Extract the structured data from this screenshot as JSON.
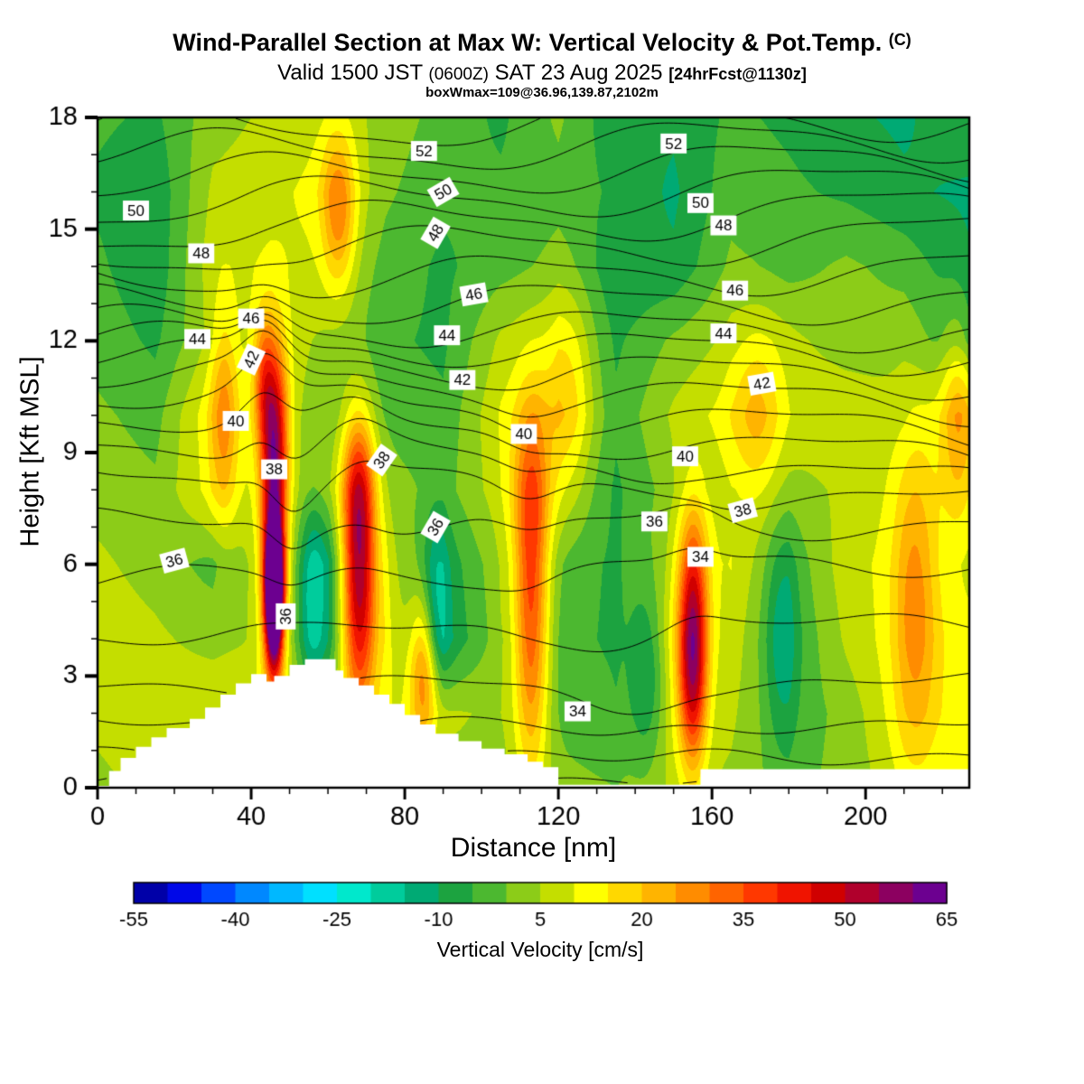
{
  "header": {
    "title_main": "Wind-Parallel Section at Max W: Vertical Velocity & Pot.Temp.",
    "title_unit": "(C)",
    "valid_prefix": "Valid 1500 JST ",
    "valid_zulu": "(0600Z)",
    "valid_date": " SAT 23 Aug 2025 ",
    "valid_fcst": "[24hrFcst@1130z]",
    "info_line": "boxWmax=109@36.96,139.87,2102m"
  },
  "chart_data": {
    "type": "heatmap",
    "title": "Wind-Parallel Section at Max W: Vertical Velocity & Pot.Temp. (C)",
    "xlabel": "Distance [nm]",
    "ylabel": "Height [Kft MSL]",
    "xlim": [
      0,
      227
    ],
    "ylim": [
      0,
      18
    ],
    "x_major_ticks": [
      0,
      40,
      80,
      120,
      160,
      200
    ],
    "x_minor_step": 10,
    "y_major_ticks": [
      0,
      3,
      6,
      9,
      12,
      15,
      18
    ],
    "y_minor_step": 1,
    "colorbar": {
      "label": "Vertical Velocity [cm/s]",
      "tick_labels": [
        -55,
        -40,
        -25,
        -10,
        5,
        20,
        35,
        50,
        65
      ],
      "levels": [
        -55,
        -50,
        -45,
        -40,
        -35,
        -30,
        -25,
        -20,
        -15,
        -10,
        -5,
        0,
        5,
        10,
        15,
        20,
        25,
        30,
        35,
        40,
        45,
        50,
        55,
        60,
        65
      ],
      "colors": [
        "#0000a8",
        "#0008e8",
        "#0048ff",
        "#0088ff",
        "#00b8ff",
        "#00e0ff",
        "#00e8cc",
        "#00cc9c",
        "#00aa74",
        "#1ca340",
        "#4cb830",
        "#8ccc18",
        "#c4de00",
        "#ffff00",
        "#ffd800",
        "#ffb400",
        "#ff8c00",
        "#ff6400",
        "#ff3800",
        "#f01400",
        "#d00000",
        "#b0002c",
        "#8c0060",
        "#6c0090"
      ]
    },
    "w_field": {
      "comment": "vertical velocity cm/s, coarse background grid, rows from z=0 (bottom) to z=18 kft",
      "x": [
        0,
        15,
        30,
        45,
        60,
        75,
        90,
        105,
        120,
        135,
        150,
        165,
        180,
        195,
        210,
        225
      ],
      "z": [
        0,
        2,
        4,
        6,
        8,
        10,
        12,
        14,
        16,
        18
      ],
      "values": [
        [
          4,
          6,
          8,
          8,
          6,
          6,
          4,
          3,
          2,
          0,
          6,
          4,
          -2,
          2,
          8,
          10
        ],
        [
          6,
          8,
          10,
          10,
          3,
          10,
          6,
          4,
          -2,
          -4,
          8,
          6,
          -4,
          2,
          12,
          13
        ],
        [
          8,
          6,
          3,
          6,
          -9,
          11,
          -11,
          3,
          -3,
          -6,
          10,
          8,
          -6,
          6,
          13,
          12
        ],
        [
          6,
          3,
          -2,
          8,
          -11,
          8,
          -9,
          4,
          -2,
          -6,
          6,
          10,
          -4,
          8,
          12,
          8
        ],
        [
          3,
          1,
          12,
          6,
          3,
          3,
          -2,
          8,
          6,
          -6,
          3,
          8,
          3,
          6,
          10,
          10
        ],
        [
          1,
          -2,
          14,
          8,
          1,
          -2,
          -4,
          10,
          12,
          -4,
          6,
          12,
          8,
          8,
          6,
          12
        ],
        [
          -2,
          -6,
          6,
          10,
          3,
          -4,
          -6,
          6,
          8,
          -6,
          1,
          6,
          6,
          3,
          3,
          -6
        ],
        [
          -4,
          -9,
          8,
          10,
          8,
          -2,
          -6,
          -2,
          1,
          -9,
          -9,
          1,
          -2,
          1,
          -2,
          -9
        ],
        [
          -6,
          -9,
          6,
          8,
          13,
          1,
          -4,
          -4,
          -2,
          -6,
          -11,
          -2,
          -4,
          -6,
          -9,
          -11
        ],
        [
          -4,
          -6,
          3,
          6,
          8,
          3,
          -2,
          -6,
          1,
          -9,
          -9,
          -4,
          -6,
          -9,
          -11,
          -6
        ]
      ]
    },
    "w_anomalies": [
      [
        46,
        5.2,
        1.6,
        1.3,
        80
      ],
      [
        46,
        6.8,
        2.4,
        2.6,
        40
      ],
      [
        46,
        9.8,
        2.6,
        1.6,
        28
      ],
      [
        68,
        5.5,
        3.2,
        2.4,
        50
      ],
      [
        68,
        8.2,
        3.0,
        1.4,
        20
      ],
      [
        85,
        3.2,
        2.6,
        1.4,
        26
      ],
      [
        113,
        4.5,
        3.2,
        3.0,
        32
      ],
      [
        113,
        8.0,
        3.6,
        1.8,
        15
      ],
      [
        155,
        3.2,
        2.6,
        1.8,
        45
      ],
      [
        155,
        5.8,
        2.8,
        1.6,
        20
      ],
      [
        33,
        10.0,
        2.4,
        1.9,
        16
      ],
      [
        43,
        11.0,
        1.8,
        1.2,
        16
      ],
      [
        63,
        15.5,
        3.0,
        1.5,
        20
      ],
      [
        213,
        5.0,
        4.0,
        3.0,
        16
      ],
      [
        224,
        10.0,
        3.0,
        2.0,
        14
      ],
      [
        172,
        10.0,
        4.5,
        1.6,
        12
      ],
      [
        123,
        10.5,
        4.0,
        2.0,
        10
      ],
      [
        56,
        5.0,
        2.4,
        1.9,
        -14
      ],
      [
        88,
        4.8,
        2.4,
        1.7,
        -12
      ],
      [
        178,
        4.0,
        3.0,
        2.0,
        -10
      ],
      [
        143,
        3.0,
        3.0,
        1.6,
        -12
      ]
    ],
    "terrain_steps": [
      [
        0,
        0.05
      ],
      [
        3,
        0.05
      ],
      [
        3,
        0.45
      ],
      [
        6,
        0.45
      ],
      [
        6,
        0.8
      ],
      [
        10,
        0.8
      ],
      [
        10,
        1.1
      ],
      [
        14,
        1.1
      ],
      [
        14,
        1.35
      ],
      [
        18,
        1.35
      ],
      [
        18,
        1.6
      ],
      [
        24,
        1.6
      ],
      [
        24,
        1.85
      ],
      [
        28,
        1.85
      ],
      [
        28,
        2.15
      ],
      [
        32,
        2.15
      ],
      [
        32,
        2.5
      ],
      [
        36,
        2.5
      ],
      [
        36,
        2.8
      ],
      [
        40,
        2.8
      ],
      [
        40,
        3.05
      ],
      [
        44,
        3.05
      ],
      [
        44,
        2.85
      ],
      [
        46,
        2.85
      ],
      [
        46,
        3.0
      ],
      [
        50,
        3.0
      ],
      [
        50,
        3.3
      ],
      [
        54,
        3.3
      ],
      [
        54,
        3.45
      ],
      [
        62,
        3.45
      ],
      [
        62,
        3.15
      ],
      [
        64,
        3.15
      ],
      [
        64,
        2.95
      ],
      [
        68,
        2.95
      ],
      [
        68,
        2.75
      ],
      [
        72,
        2.75
      ],
      [
        72,
        2.5
      ],
      [
        76,
        2.5
      ],
      [
        76,
        2.25
      ],
      [
        80,
        2.25
      ],
      [
        80,
        1.95
      ],
      [
        84,
        1.95
      ],
      [
        84,
        1.7
      ],
      [
        88,
        1.7
      ],
      [
        88,
        1.45
      ],
      [
        94,
        1.45
      ],
      [
        94,
        1.25
      ],
      [
        100,
        1.25
      ],
      [
        100,
        1.05
      ],
      [
        106,
        1.05
      ],
      [
        106,
        0.9
      ],
      [
        112,
        0.9
      ],
      [
        112,
        0.7
      ],
      [
        116,
        0.7
      ],
      [
        116,
        0.55
      ],
      [
        120,
        0.55
      ],
      [
        120,
        0.08
      ],
      [
        157,
        0.08
      ],
      [
        157,
        0.5
      ],
      [
        227,
        0.5
      ]
    ],
    "theta": {
      "units": "C",
      "profile_z": [
        0,
        1,
        2,
        3,
        4.5,
        6,
        7.5,
        8.5,
        9.5,
        10.5,
        11.5,
        12.5,
        13.5,
        14.5,
        15.5,
        16.5,
        17.5,
        18
      ],
      "profile_theta": [
        30.8,
        32.2,
        33.3,
        34.2,
        35.2,
        36.2,
        37.3,
        38.2,
        39.6,
        41.3,
        43.2,
        45.3,
        46.8,
        48.1,
        49.6,
        51.1,
        52.6,
        53.4
      ],
      "level_min": 31,
      "level_max": 53,
      "level_step": 1,
      "labels": [
        [
          52,
          85,
          17.1,
          0
        ],
        [
          52,
          150,
          17.3,
          0
        ],
        [
          50,
          10,
          15.5,
          0
        ],
        [
          50,
          90,
          16.0,
          -30
        ],
        [
          50,
          157,
          15.7,
          0
        ],
        [
          48,
          27,
          14.35,
          0
        ],
        [
          48,
          88,
          14.9,
          -60
        ],
        [
          48,
          163,
          15.1,
          0
        ],
        [
          46,
          40,
          12.6,
          0
        ],
        [
          46,
          98,
          13.25,
          -10
        ],
        [
          46,
          166,
          13.35,
          0
        ],
        [
          44,
          26,
          12.05,
          0
        ],
        [
          44,
          91,
          12.15,
          0
        ],
        [
          44,
          163,
          12.2,
          0
        ],
        [
          42,
          40,
          11.5,
          -65
        ],
        [
          42,
          95,
          10.95,
          0
        ],
        [
          42,
          173,
          10.85,
          -10
        ],
        [
          40,
          36,
          9.85,
          0
        ],
        [
          40,
          111,
          9.5,
          0
        ],
        [
          40,
          153,
          8.9,
          0
        ],
        [
          38,
          46,
          8.55,
          0
        ],
        [
          38,
          74,
          8.8,
          -55
        ],
        [
          38,
          168,
          7.45,
          -15
        ],
        [
          36,
          20,
          6.1,
          -15
        ],
        [
          36,
          88,
          7.0,
          -60
        ],
        [
          36,
          145,
          7.15,
          0
        ],
        [
          36,
          49,
          4.6,
          -90
        ],
        [
          34,
          157,
          6.2,
          0
        ],
        [
          34,
          125,
          2.05,
          0
        ]
      ]
    }
  }
}
